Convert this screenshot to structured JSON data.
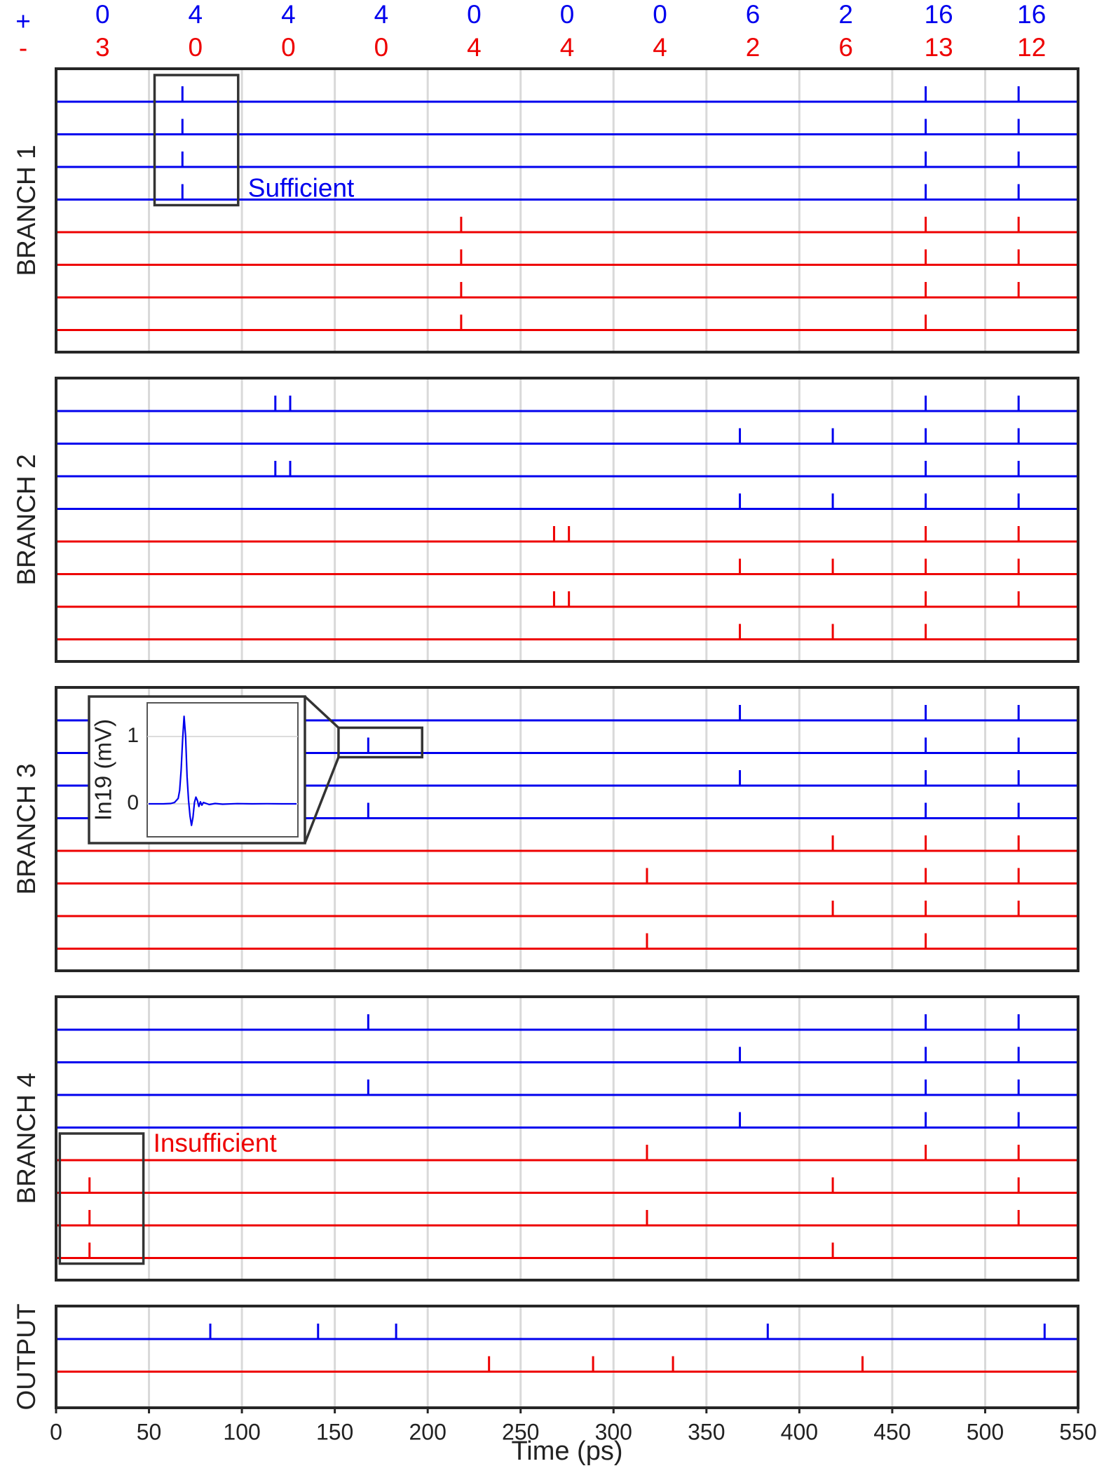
{
  "colors": {
    "positive": "#0000ee",
    "negative": "#ee0000",
    "frame": "#262626",
    "grid": "#d9d9d9",
    "annotation_box": "#333333"
  },
  "chart_data": {
    "type": "raster",
    "xlabel": "Time (ps)",
    "xlim": [
      0,
      550
    ],
    "xticks": [
      0,
      50,
      100,
      150,
      200,
      250,
      300,
      350,
      400,
      450,
      500,
      550
    ],
    "grid": true,
    "windows": [
      [
        0,
        50
      ],
      [
        50,
        100
      ],
      [
        100,
        150
      ],
      [
        150,
        200
      ],
      [
        200,
        250
      ],
      [
        250,
        300
      ],
      [
        300,
        350
      ],
      [
        350,
        400
      ],
      [
        400,
        450
      ],
      [
        450,
        500
      ],
      [
        500,
        550
      ]
    ],
    "counts": {
      "positive_symbol": "+",
      "negative_symbol": "-",
      "positive": [
        "0",
        "4",
        "4",
        "4",
        "0",
        "0",
        "0",
        "6",
        "2",
        "16",
        "16"
      ],
      "negative": [
        "3",
        "0",
        "0",
        "0",
        "4",
        "4",
        "4",
        "2",
        "6",
        "13",
        "12"
      ]
    },
    "panels": [
      {
        "label": "BRANCH 1",
        "rows": [
          {
            "polarity": "positive",
            "spikes": [
              68,
              468,
              518
            ]
          },
          {
            "polarity": "positive",
            "spikes": [
              68,
              468,
              518
            ]
          },
          {
            "polarity": "positive",
            "spikes": [
              68,
              468,
              518
            ]
          },
          {
            "polarity": "positive",
            "spikes": [
              68,
              468,
              518
            ]
          },
          {
            "polarity": "negative",
            "spikes": [
              218,
              468,
              518
            ]
          },
          {
            "polarity": "negative",
            "spikes": [
              218,
              468,
              518
            ]
          },
          {
            "polarity": "negative",
            "spikes": [
              218,
              468,
              518
            ]
          },
          {
            "polarity": "negative",
            "spikes": [
              218,
              468
            ]
          }
        ],
        "annotation": {
          "text": "Sufficient",
          "polarity": "positive",
          "x_range": [
            53,
            98
          ],
          "rows": [
            0,
            3
          ]
        }
      },
      {
        "label": "BRANCH 2",
        "rows": [
          {
            "polarity": "positive",
            "spikes": [
              118,
              126,
              468,
              518
            ]
          },
          {
            "polarity": "positive",
            "spikes": [
              368,
              418,
              468,
              518
            ]
          },
          {
            "polarity": "positive",
            "spikes": [
              118,
              126,
              468,
              518
            ]
          },
          {
            "polarity": "positive",
            "spikes": [
              368,
              418,
              468,
              518
            ]
          },
          {
            "polarity": "negative",
            "spikes": [
              268,
              276,
              468,
              518
            ]
          },
          {
            "polarity": "negative",
            "spikes": [
              368,
              418,
              468,
              518
            ]
          },
          {
            "polarity": "negative",
            "spikes": [
              268,
              276,
              468,
              518
            ]
          },
          {
            "polarity": "negative",
            "spikes": [
              368,
              418,
              468
            ]
          }
        ]
      },
      {
        "label": "BRANCH 3",
        "rows": [
          {
            "polarity": "positive",
            "spikes": [
              368,
              468,
              518
            ]
          },
          {
            "polarity": "positive",
            "spikes": [
              168,
              468,
              518
            ]
          },
          {
            "polarity": "positive",
            "spikes": [
              368,
              468,
              518
            ]
          },
          {
            "polarity": "positive",
            "spikes": [
              168,
              468,
              518
            ]
          },
          {
            "polarity": "negative",
            "spikes": [
              418,
              468,
              518
            ]
          },
          {
            "polarity": "negative",
            "spikes": [
              318,
              468,
              518
            ]
          },
          {
            "polarity": "negative",
            "spikes": [
              418,
              468,
              518
            ]
          },
          {
            "polarity": "negative",
            "spikes": [
              318,
              468
            ]
          }
        ],
        "zoom_box": {
          "x_range": [
            152,
            197
          ],
          "row": 1
        }
      },
      {
        "label": "BRANCH 4",
        "rows": [
          {
            "polarity": "positive",
            "spikes": [
              168,
              468,
              518
            ]
          },
          {
            "polarity": "positive",
            "spikes": [
              368,
              468,
              518
            ]
          },
          {
            "polarity": "positive",
            "spikes": [
              168,
              468,
              518
            ]
          },
          {
            "polarity": "positive",
            "spikes": [
              368,
              468,
              518
            ]
          },
          {
            "polarity": "negative",
            "spikes": [
              318,
              468,
              518
            ]
          },
          {
            "polarity": "negative",
            "spikes": [
              18,
              418,
              518
            ]
          },
          {
            "polarity": "negative",
            "spikes": [
              18,
              318,
              518
            ]
          },
          {
            "polarity": "negative",
            "spikes": [
              18,
              418
            ]
          }
        ],
        "annotation": {
          "text": "Insufficient",
          "polarity": "negative",
          "x_range": [
            2,
            47
          ],
          "rows": [
            4,
            7
          ]
        }
      },
      {
        "label": "OUTPUT",
        "rows": [
          {
            "polarity": "positive",
            "spikes": [
              83,
              141,
              183,
              383,
              532
            ]
          },
          {
            "polarity": "negative",
            "spikes": [
              233,
              289,
              332,
              434
            ]
          }
        ]
      }
    ],
    "inset": {
      "ylabel": "In19 (mV)",
      "yticks": [
        "1",
        "0"
      ],
      "trace": {
        "t": [
          0,
          10,
          20,
          30,
          35,
          40,
          42,
          44,
          46,
          48,
          50,
          52,
          54,
          56,
          58,
          60,
          62,
          64,
          66,
          68,
          70,
          72,
          74,
          78,
          82,
          90,
          100,
          120,
          140,
          160,
          180,
          200
        ],
        "v": [
          0,
          0,
          0,
          0.005,
          0.02,
          0.08,
          0.2,
          0.5,
          0.95,
          1.3,
          1.0,
          0.4,
          0.05,
          -0.18,
          -0.32,
          -0.2,
          0.02,
          0.1,
          0.05,
          -0.04,
          0.03,
          -0.02,
          0.02,
          0.005,
          -0.01,
          0.005,
          -0.005,
          0.003,
          0,
          0.002,
          0,
          0
        ]
      }
    }
  }
}
